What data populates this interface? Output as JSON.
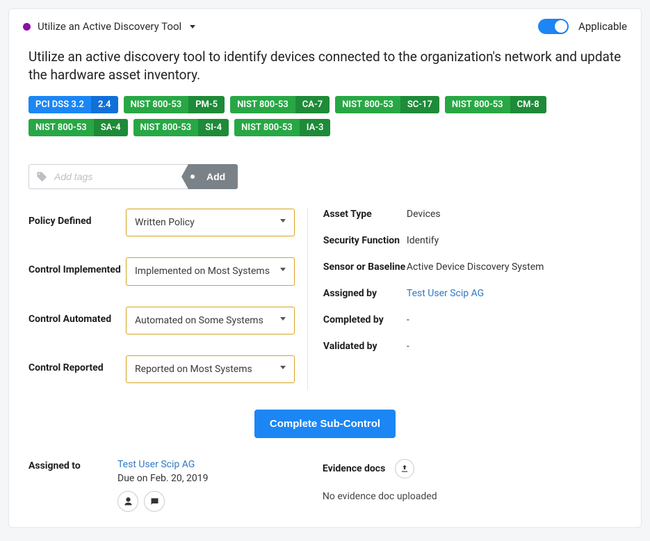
{
  "header": {
    "bullet_color": "#8e0caa",
    "title": "Utilize an Active Discovery Tool",
    "applicable_label": "Applicable",
    "applicable_on": true,
    "toggle_color": "#1b86f4"
  },
  "description": "Utilize an active discovery tool to identify devices connected to the organization's network and update the hardware asset inventory.",
  "tags": [
    {
      "framework": "PCI DSS 3.2",
      "code": "2.4",
      "variant": "blue"
    },
    {
      "framework": "NIST 800-53",
      "code": "PM-5",
      "variant": "green"
    },
    {
      "framework": "NIST 800-53",
      "code": "CA-7",
      "variant": "green"
    },
    {
      "framework": "NIST 800-53",
      "code": "SC-17",
      "variant": "green"
    },
    {
      "framework": "NIST 800-53",
      "code": "CM-8",
      "variant": "green"
    },
    {
      "framework": "NIST 800-53",
      "code": "SA-4",
      "variant": "green"
    },
    {
      "framework": "NIST 800-53",
      "code": "SI-4",
      "variant": "green"
    },
    {
      "framework": "NIST 800-53",
      "code": "IA-3",
      "variant": "green"
    }
  ],
  "tag_colors": {
    "blue": {
      "fw": "#1b86f4",
      "code": "#1070d8"
    },
    "green": {
      "fw": "#28a745",
      "code": "#1e8b38"
    }
  },
  "add_tags": {
    "placeholder": "Add tags",
    "button": "Add"
  },
  "left_fields": {
    "policy_defined": {
      "label": "Policy Defined",
      "value": "Written Policy"
    },
    "control_implemented": {
      "label": "Control Implemented",
      "value": "Implemented on Most Systems"
    },
    "control_automated": {
      "label": "Control Automated",
      "value": "Automated on Some Systems"
    },
    "control_reported": {
      "label": "Control Reported",
      "value": "Reported on Most Systems"
    }
  },
  "right_fields": {
    "asset_type": {
      "label": "Asset Type",
      "value": "Devices"
    },
    "security_function": {
      "label": "Security Function",
      "value": "Identify"
    },
    "sensor_or_baseline": {
      "label": "Sensor or Baseline",
      "value": "Active Device Discovery System"
    },
    "assigned_by": {
      "label": "Assigned by",
      "value": "Test User Scip AG",
      "link": true
    },
    "completed_by": {
      "label": "Completed by",
      "value": "-"
    },
    "validated_by": {
      "label": "Validated by",
      "value": "-"
    }
  },
  "action_button": "Complete Sub-Control",
  "footer": {
    "assigned_label": "Assigned to",
    "assignee": "Test User Scip AG",
    "due_text": "Due on Feb. 20, 2019",
    "evidence_label": "Evidence docs",
    "evidence_empty": "No evidence doc uploaded"
  },
  "style": {
    "select_border": "#d6a51b",
    "card_border": "#e6e7e9",
    "add_btn_bg": "#7a8288",
    "complete_btn_bg": "#1b86f4"
  }
}
